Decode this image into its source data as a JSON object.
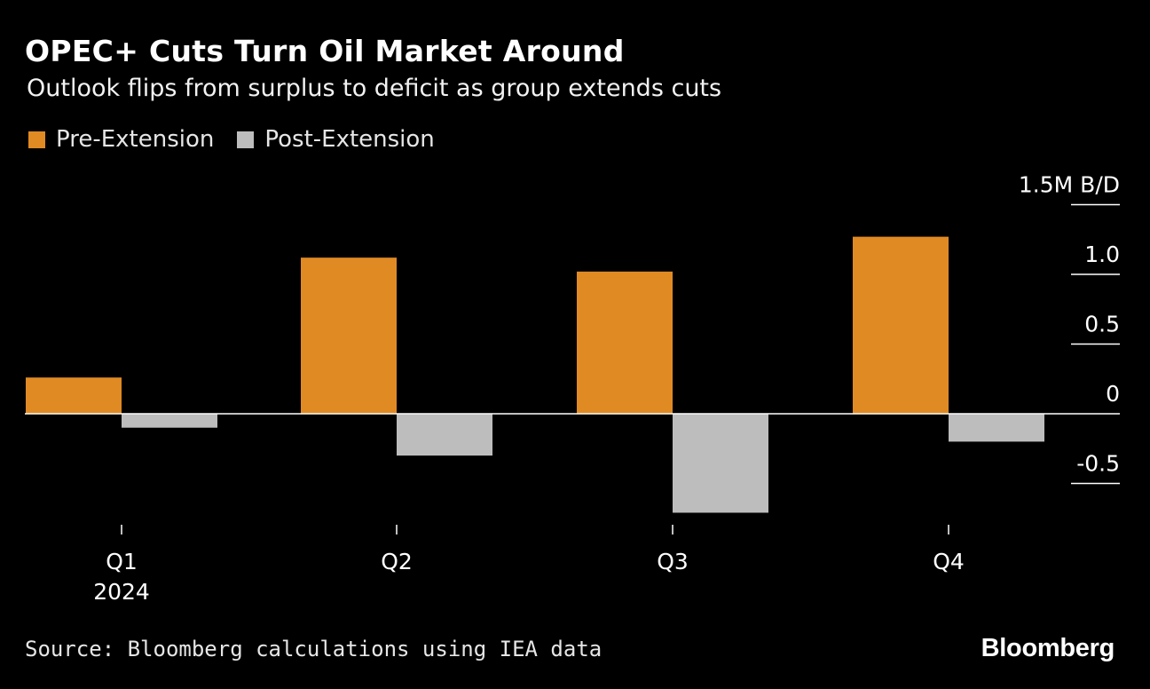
{
  "header": {
    "title": "OPEC+ Cuts Turn Oil Market Around",
    "subtitle": "Outlook flips from surplus to deficit as group extends cuts"
  },
  "legend": {
    "items": [
      {
        "label": "Pre-Extension",
        "color": "#e08a24"
      },
      {
        "label": "Post-Extension",
        "color": "#bdbdbd"
      }
    ]
  },
  "footer": {
    "source": "Source: Bloomberg calculations using IEA data",
    "brand": "Bloomberg"
  },
  "chart_data": {
    "type": "bar",
    "title": "OPEC+ Cuts Turn Oil Market Around",
    "ylabel": "M B/D",
    "categories": [
      "Q1",
      "Q2",
      "Q3",
      "Q4"
    ],
    "category_sublabels": [
      "2024",
      "",
      "",
      ""
    ],
    "series": [
      {
        "name": "Pre-Extension",
        "color": "#e08a24",
        "values": [
          0.26,
          1.12,
          1.02,
          1.27
        ]
      },
      {
        "name": "Post-Extension",
        "color": "#bdbdbd",
        "values": [
          -0.1,
          -0.3,
          -0.71,
          -0.2
        ]
      }
    ],
    "ylim": [
      -0.75,
      1.5
    ],
    "yticks": [
      -0.5,
      0,
      0.5,
      1.0,
      1.5
    ],
    "ytick_labels": [
      "-0.5",
      "0",
      "0.5",
      "1.0",
      "1.5M B/D"
    ],
    "grid": false,
    "legend_position": "top-left"
  }
}
